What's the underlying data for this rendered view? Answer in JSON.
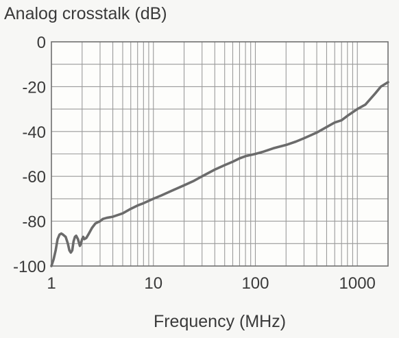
{
  "chart_data": {
    "type": "line",
    "title": "Analog crosstalk (dB)",
    "xlabel": "Frequency (MHz)",
    "ylabel": "",
    "x_scale": "log",
    "xlim": [
      1,
      2000
    ],
    "ylim": [
      -100,
      0
    ],
    "x_ticks": [
      1,
      10,
      100,
      1000
    ],
    "x_tick_labels": [
      "1",
      "10",
      "100",
      "1000"
    ],
    "y_ticks": [
      0,
      -20,
      -40,
      -60,
      -80,
      -100
    ],
    "y_tick_labels": [
      "0",
      "-20",
      "-40",
      "-60",
      "-80",
      "-100"
    ],
    "grid": true,
    "legend": "none",
    "colors": {
      "line": "#6b6b6b",
      "grid": "#9a9a9a",
      "frame": "#6f6f6f",
      "plot_bg": "#fdfdfb"
    },
    "series": [
      {
        "x": [
          1.0,
          1.05,
          1.1,
          1.15,
          1.2,
          1.25,
          1.3,
          1.38,
          1.45,
          1.5,
          1.55,
          1.6,
          1.65,
          1.7,
          1.75,
          1.82,
          1.9,
          1.95,
          2.0,
          2.05,
          2.1,
          2.2,
          2.3,
          2.5,
          2.7,
          3.0,
          3.2,
          3.5,
          4.0,
          5.0,
          6.0,
          7.0,
          8.0,
          10,
          12,
          15,
          20,
          25,
          30,
          40,
          50,
          60,
          70,
          80,
          100,
          120,
          150,
          200,
          250,
          300,
          400,
          500,
          600,
          700,
          800,
          1000,
          1200,
          1500,
          1700,
          2000
        ],
        "y": [
          -100,
          -97,
          -93,
          -88,
          -86,
          -85.5,
          -86,
          -87,
          -90,
          -93,
          -94,
          -93,
          -89,
          -87,
          -86.5,
          -88,
          -91,
          -90,
          -88,
          -87,
          -88,
          -87.5,
          -86,
          -83,
          -81,
          -80,
          -79,
          -78.5,
          -78,
          -76.5,
          -74.5,
          -73,
          -72,
          -70,
          -68.5,
          -66.5,
          -64,
          -62,
          -60,
          -57,
          -55,
          -53.5,
          -52,
          -51,
          -50,
          -49,
          -47.5,
          -46,
          -44.5,
          -43,
          -40.5,
          -38,
          -36,
          -35,
          -33,
          -30,
          -28,
          -23,
          -20,
          -18
        ]
      }
    ]
  }
}
